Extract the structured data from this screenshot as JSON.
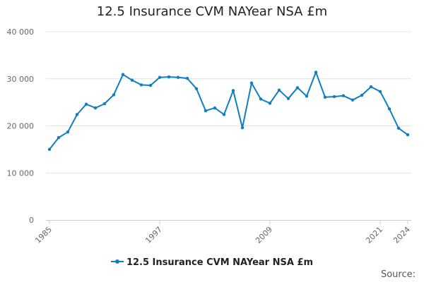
{
  "chart_data": {
    "type": "line",
    "title": "12.5 Insurance CVM NAYear NSA £m",
    "xlabel": "",
    "ylabel": "",
    "x_tick_labels": [
      "1985",
      "1997",
      "2009",
      "2021",
      "2024"
    ],
    "y_tick_labels": [
      "0",
      "10 000",
      "20 000",
      "30 000",
      "40 000"
    ],
    "ylim": [
      0,
      40000
    ],
    "xlim": [
      1985,
      2024
    ],
    "grid": true,
    "legend_position": "bottom",
    "series": [
      {
        "name": "12.5 Insurance CVM NAYear NSA £m",
        "color": "#0f7fbf",
        "x": [
          1985,
          1986,
          1987,
          1988,
          1989,
          1990,
          1991,
          1992,
          1993,
          1994,
          1995,
          1996,
          1997,
          1998,
          1999,
          2000,
          2001,
          2002,
          2003,
          2004,
          2005,
          2006,
          2007,
          2008,
          2009,
          2010,
          2011,
          2012,
          2013,
          2014,
          2015,
          2016,
          2017,
          2018,
          2019,
          2020,
          2021,
          2022,
          2023,
          2024
        ],
        "values": [
          15000,
          17500,
          18700,
          22400,
          24600,
          23800,
          24700,
          26600,
          30900,
          29700,
          28700,
          28600,
          30300,
          30400,
          30300,
          30100,
          27900,
          23200,
          23800,
          22400,
          27500,
          19600,
          29100,
          25700,
          24800,
          27600,
          25800,
          28100,
          26300,
          31400,
          26100,
          26200,
          26400,
          25500,
          26500,
          28300,
          27300,
          23600,
          19500,
          18100
        ]
      }
    ]
  },
  "legend": {
    "label": "12.5 Insurance CVM NAYear NSA £m"
  },
  "source": {
    "label": "Source:"
  }
}
